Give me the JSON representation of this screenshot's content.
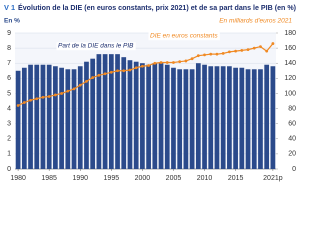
{
  "chart_data": {
    "type": "combo",
    "figure_label": "V 1",
    "title": "Évolution de la DIE (en euros constants, prix 2021) et de sa part dans le PIB (en %)",
    "y_label": "En %",
    "y2_label": "En milliards d'euros 2021",
    "x": [
      1980,
      1981,
      1982,
      1983,
      1984,
      1985,
      1986,
      1987,
      1988,
      1989,
      1990,
      1991,
      1992,
      1993,
      1994,
      1995,
      1996,
      1997,
      1998,
      1999,
      2000,
      2001,
      2002,
      2003,
      2004,
      2005,
      2006,
      2007,
      2008,
      2009,
      2010,
      2011,
      2012,
      2013,
      2014,
      2015,
      2016,
      2017,
      2018,
      2019,
      2020,
      2021
    ],
    "xlim": [
      1979.5,
      2021.5
    ],
    "xticks": [
      1980,
      1985,
      1990,
      1995,
      2000,
      2005,
      2010,
      2015,
      {
        "value": 2021,
        "label": "2021p"
      }
    ],
    "ylim": [
      0,
      9
    ],
    "yticks": [
      0,
      1,
      2,
      3,
      4,
      5,
      6,
      7,
      8,
      9
    ],
    "y2lim": [
      0,
      180
    ],
    "y2ticks": [
      0,
      20,
      40,
      60,
      80,
      100,
      120,
      140,
      160,
      180
    ],
    "grid": true,
    "series": [
      {
        "name": "Part de la DIE dans le PIB",
        "type": "bar",
        "color": "#2b4a8b",
        "values": [
          6.5,
          6.7,
          6.9,
          6.9,
          6.9,
          6.9,
          6.8,
          6.7,
          6.6,
          6.6,
          6.8,
          7.1,
          7.3,
          7.6,
          7.6,
          7.6,
          7.6,
          7.4,
          7.2,
          7.1,
          7.0,
          6.9,
          7.0,
          7.0,
          6.9,
          6.7,
          6.6,
          6.6,
          6.6,
          7.0,
          6.9,
          6.8,
          6.8,
          6.8,
          6.8,
          6.7,
          6.7,
          6.6,
          6.6,
          6.6,
          6.9,
          6.8
        ]
      },
      {
        "name": "DIE en euros constants",
        "type": "line",
        "axis": "y2",
        "color": "#f08a24",
        "values": [
          84,
          88,
          91,
          93,
          95,
          96,
          98,
          100,
          103,
          106,
          111,
          116,
          121,
          124,
          126,
          128,
          130,
          130,
          131,
          134,
          136,
          137,
          140,
          141,
          141,
          141,
          142,
          143,
          146,
          150,
          151,
          152,
          152,
          153,
          155,
          156,
          157,
          158,
          160,
          162,
          156,
          166
        ]
      }
    ]
  }
}
